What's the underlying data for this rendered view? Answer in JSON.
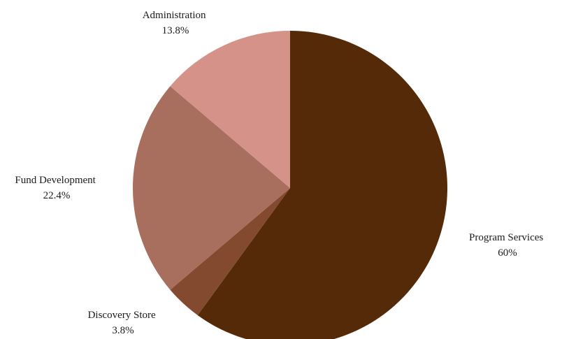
{
  "chart_data": {
    "type": "pie",
    "categories": [
      "Program Services",
      "Discovery Store",
      "Fund Development",
      "Administration"
    ],
    "values": [
      60,
      3.8,
      22.4,
      13.8
    ],
    "value_labels": [
      "60%",
      "3.8%",
      "22.4%",
      "13.8%"
    ],
    "colors": [
      "#552a08",
      "#834a30",
      "#a86e5e",
      "#d49288"
    ],
    "start_angle": "12 o'clock",
    "direction": "clockwise"
  }
}
